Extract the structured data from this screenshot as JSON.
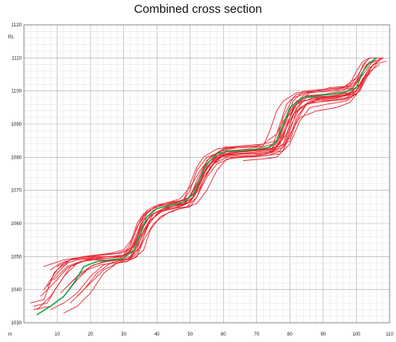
{
  "chart_data": {
    "type": "line",
    "title": "Combined cross section",
    "xlabel": "m",
    "ylabel": "RL",
    "xlim": [
      0,
      110
    ],
    "ylim": [
      1030,
      1120
    ],
    "x_ticks": [
      10,
      20,
      30,
      40,
      50,
      60,
      70,
      80,
      90,
      100,
      110
    ],
    "y_ticks": [
      1030,
      1040,
      1050,
      1060,
      1070,
      1080,
      1090,
      1100,
      1110,
      1120
    ],
    "grid": true,
    "minor_grid_step": 2,
    "colors": {
      "red_series": "#e8202a",
      "green_series": "#17a84a",
      "major_grid": "#aaaaaa",
      "minor_grid": "#e3e3e3"
    },
    "series_description": "Many overlapping red cross-section lines and one green cross-section line rising from about 1033 RL near x=3 to about 1110 RL near x=107, in steps with benches near 1050, 1066, 1082 and 1099 RL.",
    "series": [
      {
        "color": "#17a84a",
        "x": [
          4,
          8,
          12,
          15,
          18,
          22,
          26,
          30,
          33,
          35,
          37,
          40,
          44,
          48,
          51,
          53,
          55,
          58,
          62,
          66,
          70,
          74,
          76,
          78,
          80,
          84,
          88,
          92,
          96,
          100,
          102,
          104,
          106
        ],
        "y": [
          1032.5,
          1035,
          1038,
          1042,
          1047,
          1048.5,
          1049,
          1049.5,
          1052,
          1057,
          1062,
          1064.5,
          1065.5,
          1066.5,
          1069,
          1074,
          1078,
          1081,
          1082,
          1082,
          1082.5,
          1083,
          1085,
          1090,
          1095,
          1098,
          1098.5,
          1099,
          1099.5,
          1101,
          1106,
          1108.5,
          1110
        ]
      },
      {
        "color": "#e8202a",
        "x": [
          2,
          6,
          9,
          12,
          15,
          20,
          26,
          30,
          32,
          34,
          36,
          40,
          44,
          48,
          50,
          52,
          54,
          58,
          62,
          68,
          72,
          74,
          76,
          78,
          82,
          88,
          94,
          98,
          100,
          102,
          104,
          108
        ],
        "y": [
          1036,
          1037,
          1045,
          1048,
          1049.5,
          1050,
          1050,
          1050.5,
          1054,
          1060,
          1063,
          1065,
          1066,
          1067,
          1072,
          1077,
          1080,
          1082.5,
          1083,
          1083,
          1083.5,
          1088,
          1094,
          1097,
          1099.5,
          1100,
          1100.5,
          1102,
          1106,
          1109,
          1110,
          1110
        ]
      },
      {
        "color": "#e8202a",
        "x": [
          3,
          8,
          12,
          16,
          20,
          24,
          28,
          31,
          33,
          35,
          38,
          42,
          46,
          49,
          51,
          53,
          56,
          60,
          66,
          70,
          74,
          77,
          79,
          82,
          86,
          92,
          96,
          99,
          101,
          103,
          106
        ],
        "y": [
          1034,
          1035,
          1038,
          1043,
          1047,
          1048.5,
          1049,
          1049,
          1051,
          1056,
          1061,
          1064,
          1065,
          1066,
          1068,
          1073,
          1078,
          1080.5,
          1081,
          1081.5,
          1082,
          1086,
          1092,
          1097,
          1098.5,
          1099,
          1099.5,
          1101,
          1104,
          1108,
          1109
        ]
      },
      {
        "color": "#e8202a",
        "x": [
          6,
          10,
          14,
          18,
          22,
          28,
          32,
          34,
          36,
          38,
          42,
          46,
          50,
          52,
          54,
          56,
          60,
          66,
          72,
          76,
          78,
          80,
          84,
          90,
          96,
          100,
          102,
          104
        ],
        "y": [
          1040,
          1046,
          1049,
          1050,
          1050.5,
          1051,
          1052,
          1057,
          1062,
          1064,
          1066,
          1066.5,
          1068,
          1072,
          1076,
          1079,
          1081.5,
          1082,
          1082.5,
          1084,
          1089,
          1095,
          1098.5,
          1099,
          1100,
          1103,
          1108,
          1110
        ]
      },
      {
        "color": "#e8202a",
        "x": [
          8,
          12,
          16,
          20,
          24,
          28,
          32,
          34,
          37,
          40,
          44,
          48,
          51,
          54,
          57,
          62,
          68,
          74,
          78,
          80,
          83,
          88,
          94,
          99,
          102,
          105,
          109
        ],
        "y": [
          1034,
          1036,
          1039,
          1044,
          1047.5,
          1048.5,
          1049.5,
          1053,
          1059,
          1063,
          1065,
          1066,
          1069,
          1075,
          1079.5,
          1081,
          1081,
          1081.5,
          1083,
          1089,
          1095,
          1097.5,
          1098,
          1099,
          1103,
          1108,
          1109
        ]
      },
      {
        "color": "#e8202a",
        "x": [
          5,
          9,
          13,
          17,
          21,
          25,
          30,
          33,
          35,
          38,
          42,
          46,
          49,
          52,
          55,
          58,
          64,
          70,
          75,
          78,
          81,
          86,
          92,
          97,
          101,
          104,
          107
        ],
        "y": [
          1038,
          1042,
          1046.5,
          1048.5,
          1049.5,
          1049.5,
          1050,
          1053,
          1058,
          1062.5,
          1064.5,
          1065.5,
          1067,
          1072,
          1077,
          1080,
          1080.5,
          1080.5,
          1081.5,
          1087,
          1093,
          1096.5,
          1097,
          1097.5,
          1100,
          1106,
          1108
        ]
      },
      {
        "color": "#e8202a",
        "x": [
          10,
          14,
          18,
          22,
          26,
          30,
          33,
          35,
          37,
          40,
          44,
          47,
          50,
          53,
          56,
          60,
          64,
          70,
          76,
          79,
          81,
          84,
          90,
          96,
          100,
          103
        ],
        "y": [
          1047,
          1049,
          1050,
          1050.5,
          1051,
          1052,
          1056,
          1061,
          1064,
          1065.5,
          1066.5,
          1067.5,
          1071,
          1076,
          1080,
          1082.5,
          1083,
          1083.5,
          1085,
          1091,
          1097,
          1100,
          1100.5,
          1101,
          1104,
          1109
        ]
      },
      {
        "color": "#e8202a",
        "x": [
          12,
          16,
          20,
          24,
          28,
          31,
          34,
          36,
          39,
          43,
          47,
          50,
          52,
          55,
          58,
          63,
          69,
          73,
          76,
          79,
          82,
          87,
          93,
          98,
          101
        ],
        "y": [
          1033,
          1035,
          1039,
          1045,
          1048,
          1048.5,
          1050,
          1055,
          1060,
          1063,
          1064.5,
          1065,
          1068,
          1074,
          1078,
          1080,
          1080.5,
          1081,
          1083,
          1090,
          1096,
          1098,
          1098.5,
          1099,
          1102
        ]
      },
      {
        "color": "#e8202a",
        "x": [
          3,
          7,
          10,
          14,
          19,
          25,
          30,
          32,
          34,
          37,
          41,
          45,
          48,
          50,
          52,
          55,
          60,
          67,
          73,
          76,
          78,
          81,
          86,
          93,
          99,
          102,
          105,
          108
        ],
        "y": [
          1035,
          1036,
          1041,
          1047,
          1049,
          1049.5,
          1050,
          1053,
          1059,
          1063.5,
          1065.5,
          1066,
          1067,
          1070,
          1076,
          1080,
          1082,
          1082,
          1082.5,
          1085,
          1092,
          1098,
          1099.5,
          1100,
          1101,
          1105,
          1109,
          1110
        ]
      },
      {
        "color": "#e8202a",
        "x": [
          9,
          13,
          17,
          21,
          25,
          29,
          32,
          34,
          36,
          39,
          43,
          47,
          50,
          53,
          56,
          60,
          66,
          72,
          77,
          80,
          82,
          85,
          90,
          96,
          100,
          103,
          106
        ],
        "y": [
          1043,
          1047,
          1048.5,
          1049,
          1049,
          1049.5,
          1051.5,
          1056,
          1060,
          1063,
          1064.5,
          1065,
          1066.5,
          1071,
          1077,
          1080.5,
          1081,
          1081,
          1082,
          1086,
          1092,
          1096,
          1097,
          1097.5,
          1099,
          1104,
          1108
        ]
      },
      {
        "color": "#e8202a",
        "x": [
          6,
          9,
          12,
          15,
          19,
          24,
          29,
          33,
          35,
          37,
          40,
          44,
          48,
          51,
          53,
          55,
          59,
          65,
          71,
          75,
          77,
          79,
          82,
          88,
          94,
          99,
          102,
          104
        ],
        "y": [
          1047,
          1048,
          1049,
          1049.5,
          1050,
          1050.5,
          1051,
          1053,
          1059,
          1063,
          1065.5,
          1066.5,
          1067,
          1068.5,
          1074,
          1079,
          1082,
          1083,
          1083,
          1084,
          1090,
          1096,
          1099,
          1100,
          1100.5,
          1101.5,
          1106,
          1109
        ]
      },
      {
        "color": "#e8202a",
        "x": [
          14,
          18,
          22,
          26,
          30,
          33,
          36,
          38,
          41,
          45,
          49,
          52,
          55,
          58,
          61,
          66,
          72,
          77,
          80,
          83,
          86,
          91,
          97,
          101,
          104
        ],
        "y": [
          1036,
          1040,
          1045,
          1048,
          1049,
          1049.5,
          1052,
          1058,
          1062,
          1064,
          1065,
          1066,
          1070,
          1076,
          1079.5,
          1080,
          1080.5,
          1081,
          1084,
          1091,
          1095,
          1096,
          1097,
          1100,
          1106
        ]
      },
      {
        "color": "#e8202a",
        "x": [
          7,
          10,
          13,
          16,
          20,
          26,
          31,
          34,
          36,
          39,
          43,
          47,
          50,
          52,
          54,
          57,
          62,
          69,
          75,
          78,
          80,
          82,
          85,
          92,
          98,
          101,
          104,
          108
        ],
        "y": [
          1041,
          1045,
          1048,
          1049,
          1049.5,
          1050,
          1050.5,
          1052,
          1058,
          1063,
          1065,
          1065.5,
          1066.5,
          1070,
          1075,
          1079,
          1081.5,
          1082,
          1082.5,
          1084,
          1090,
          1095,
          1098,
          1098.5,
          1099.5,
          1102,
          1107,
          1110
        ]
      },
      {
        "color": "#e8202a",
        "x": [
          11,
          15,
          19,
          23,
          27,
          31,
          34,
          36,
          38,
          41,
          45,
          49,
          52,
          54,
          57,
          61,
          67,
          73,
          78,
          80,
          82,
          86,
          92,
          97,
          100
        ],
        "y": [
          1039,
          1043,
          1046,
          1047.5,
          1048,
          1048.5,
          1051,
          1056,
          1061,
          1063.5,
          1064.5,
          1065,
          1068,
          1073,
          1078,
          1080,
          1080,
          1080.5,
          1082,
          1088,
          1094,
          1097,
          1097.5,
          1098,
          1100
        ]
      },
      {
        "color": "#e8202a",
        "x": [
          4,
          8,
          12,
          16,
          20,
          25,
          30,
          32,
          34,
          36,
          39,
          43,
          47,
          50,
          52,
          54,
          57,
          62,
          68,
          74,
          77,
          79,
          81,
          85,
          92,
          98,
          101,
          104,
          107
        ],
        "y": [
          1034,
          1038,
          1044,
          1048,
          1049.5,
          1050,
          1050,
          1051.5,
          1056,
          1061,
          1064,
          1065.5,
          1066,
          1068,
          1073,
          1077,
          1080,
          1082,
          1082.5,
          1082.5,
          1084,
          1089,
          1095,
          1098.5,
          1099,
          1099.5,
          1102,
          1107,
          1109.5
        ]
      },
      {
        "color": "#e8202a",
        "x": [
          16,
          20,
          24,
          28,
          32,
          35,
          37,
          40,
          44,
          48,
          51,
          54,
          57,
          60,
          65,
          71,
          76,
          79,
          81,
          84,
          89,
          95,
          100,
          103
        ],
        "y": [
          1038,
          1042,
          1046,
          1048,
          1049.5,
          1053,
          1059,
          1063,
          1065,
          1066,
          1068,
          1074,
          1078,
          1081,
          1081.5,
          1082,
          1083,
          1087,
          1093,
          1097,
          1098,
          1098.5,
          1100,
          1105
        ]
      },
      {
        "color": "#e8202a",
        "x": [
          8,
          11,
          14,
          18,
          22,
          27,
          31,
          33,
          35,
          37,
          40,
          44,
          48,
          51,
          53,
          55,
          58,
          63,
          70,
          75,
          78,
          80,
          82,
          86,
          93,
          99,
          102,
          105
        ],
        "y": [
          1046,
          1048,
          1049,
          1049.5,
          1050,
          1050,
          1050.5,
          1053,
          1057,
          1062,
          1064.5,
          1065.5,
          1066,
          1068,
          1072,
          1077,
          1080.5,
          1081,
          1081.5,
          1082,
          1086,
          1092,
          1096.5,
          1097.5,
          1098,
          1099,
          1103,
          1108
        ]
      },
      {
        "color": "#e8202a",
        "x": [
          13,
          17,
          21,
          25,
          29,
          32,
          34,
          36,
          38,
          42,
          46,
          50,
          53,
          56,
          59,
          64,
          70,
          76,
          80,
          82,
          85,
          90,
          96,
          100,
          102
        ],
        "y": [
          1041,
          1045,
          1047.5,
          1048.5,
          1049,
          1050,
          1054,
          1059,
          1062.5,
          1064.5,
          1065.5,
          1066.5,
          1071,
          1077,
          1080.5,
          1081.5,
          1082,
          1082.5,
          1085,
          1091,
          1096,
          1098,
          1098.5,
          1100,
          1104
        ]
      },
      {
        "color": "#e8202a",
        "x": [
          60,
          66,
          72,
          76,
          78,
          80,
          82,
          86,
          92,
          98,
          100
        ],
        "y": [
          1083,
          1083.5,
          1084,
          1087,
          1091,
          1093,
          1096,
          1099.5,
          1101,
          1101.5,
          1104
        ]
      },
      {
        "color": "#e8202a",
        "x": [
          66,
          72,
          76,
          78,
          80,
          83,
          88,
          94,
          98,
          100,
          102
        ],
        "y": [
          1079,
          1079.5,
          1080,
          1082,
          1087,
          1092,
          1094,
          1095,
          1096.5,
          1099,
          1103
        ]
      }
    ]
  }
}
